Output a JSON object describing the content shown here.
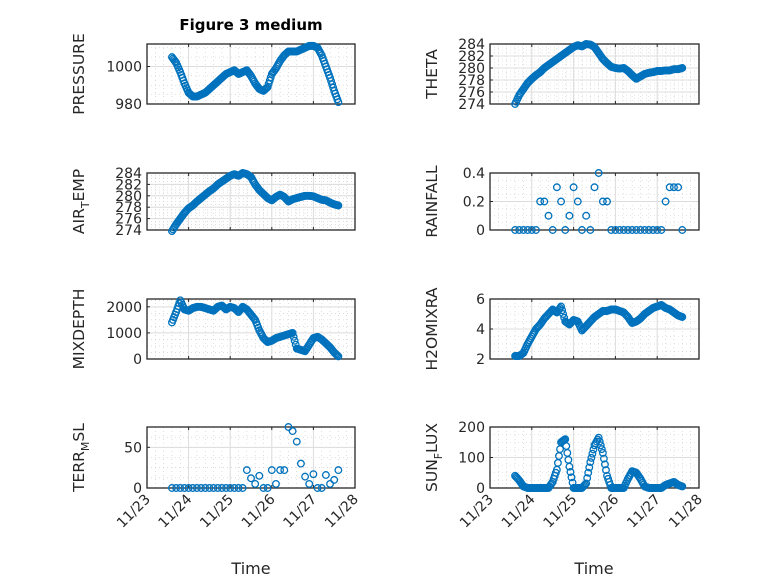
{
  "figure": {
    "title": "Figure 3 medium",
    "marker_color": "#0072BD",
    "xlabel": "Time"
  },
  "chart_data": {
    "type": "scatter",
    "marker": "open-circle",
    "x_unit": "days since 11/23 00:00",
    "x": [
      0.6,
      0.7,
      0.8,
      0.9,
      1.0,
      1.1,
      1.2,
      1.3,
      1.4,
      1.5,
      1.6,
      1.7,
      1.8,
      1.9,
      2.0,
      2.1,
      2.2,
      2.3,
      2.4,
      2.5,
      2.6,
      2.7,
      2.8,
      2.9,
      3.0,
      3.1,
      3.2,
      3.3,
      3.4,
      3.5,
      3.6,
      3.7,
      3.8,
      3.9,
      4.0,
      4.1,
      4.2,
      4.3,
      4.4,
      4.5,
      4.6
    ],
    "xlim": [
      0,
      5
    ],
    "xticks": [
      0,
      1,
      2,
      3,
      4,
      5
    ],
    "xticklabels": [
      "11/23",
      "11/24",
      "11/25",
      "11/26",
      "11/27",
      "11/28"
    ],
    "grid": "on (major + minor)",
    "panels": [
      {
        "ylabel": "PRESSURE",
        "ylim": [
          980,
          1012
        ],
        "yticks": [
          980,
          1000
        ],
        "dense": true,
        "values": [
          1005,
          1002,
          997,
          991,
          986,
          984,
          984,
          985,
          986,
          988,
          990,
          992,
          994,
          996,
          997,
          998,
          996,
          997,
          998,
          995,
          991,
          988,
          987,
          989,
          996,
          999,
          1003,
          1006,
          1008,
          1008,
          1008,
          1009,
          1010,
          1011,
          1011,
          1010,
          1006,
          1000,
          994,
          987,
          981
        ]
      },
      {
        "ylabel": "THETA",
        "ylim": [
          274,
          284
        ],
        "yticks": [
          274,
          276,
          278,
          280,
          282,
          284
        ],
        "dense": true,
        "values": [
          274,
          275.5,
          276.5,
          277.5,
          278.2,
          278.8,
          279.3,
          280,
          280.5,
          281,
          281.5,
          282,
          282.5,
          283,
          283.5,
          283.8,
          283.6,
          284,
          283.9,
          283.5,
          282.5,
          281.5,
          280.8,
          280.2,
          280,
          279.9,
          280,
          279.5,
          278.8,
          278.2,
          278.6,
          279,
          279.2,
          279.3,
          279.5,
          279.5,
          279.6,
          279.6,
          279.8,
          279.8,
          280
        ]
      },
      {
        "ylabel": "AIR_TEMP",
        "ylim": [
          274,
          284
        ],
        "yticks": [
          274,
          276,
          278,
          280,
          282,
          284
        ],
        "dense": true,
        "values": [
          273.8,
          275,
          276,
          277,
          277.8,
          278.3,
          279,
          279.6,
          280.2,
          280.8,
          281.3,
          282,
          282.5,
          283,
          283.5,
          283.8,
          283.5,
          284,
          283.8,
          283.3,
          282,
          281,
          280.3,
          279.6,
          279.2,
          279.8,
          280.2,
          279.8,
          279,
          279.4,
          279.6,
          279.8,
          280,
          280,
          279.9,
          279.6,
          279.3,
          279.2,
          278.8,
          278.5,
          278.3
        ]
      },
      {
        "ylabel": "RAINFALL",
        "ylim": [
          0,
          0.4
        ],
        "yticks": [
          0,
          0.2,
          0.4
        ],
        "dense": false,
        "values": [
          0,
          0,
          0,
          0,
          0,
          0,
          0.2,
          0.2,
          0.1,
          0,
          0.3,
          0.2,
          0,
          0.1,
          0.3,
          0.2,
          0,
          0.1,
          0,
          0.3,
          0.4,
          0.2,
          0.2,
          0,
          0,
          0,
          0,
          0,
          0,
          0,
          0,
          0,
          0,
          0,
          0,
          0,
          0.2,
          0.3,
          0.3,
          0.3,
          0
        ]
      },
      {
        "ylabel": "MIXDEPTH",
        "ylim": [
          0,
          2300
        ],
        "yticks": [
          0,
          1000,
          2000
        ],
        "dense": true,
        "values": [
          1400,
          1800,
          2250,
          1900,
          1850,
          1950,
          2000,
          2000,
          1950,
          1900,
          1850,
          2000,
          2050,
          1900,
          2000,
          1950,
          1800,
          2000,
          1900,
          1700,
          1500,
          1100,
          800,
          650,
          700,
          800,
          850,
          900,
          950,
          1000,
          400,
          350,
          300,
          550,
          800,
          850,
          750,
          600,
          450,
          250,
          100
        ]
      },
      {
        "ylabel": "H2OMIXRA",
        "ylim": [
          2,
          6
        ],
        "yticks": [
          2,
          4,
          6
        ],
        "dense": true,
        "values": [
          2.2,
          2.2,
          2.4,
          3,
          3.5,
          4,
          4.3,
          4.7,
          5,
          5.3,
          5.1,
          5.5,
          4.5,
          4.3,
          4.6,
          4.5,
          3.9,
          4.2,
          4.5,
          4.8,
          5,
          5.2,
          5.2,
          5.3,
          5.3,
          5.2,
          5.1,
          4.8,
          4.4,
          4.5,
          4.7,
          5,
          5.2,
          5.4,
          5.5,
          5.6,
          5.4,
          5.3,
          5.1,
          4.9,
          4.8
        ]
      },
      {
        "ylabel": "TERR_MSL",
        "ylim": [
          0,
          75
        ],
        "yticks": [
          0,
          50
        ],
        "dense": false,
        "values": [
          0,
          0,
          0,
          0,
          0,
          0,
          0,
          0,
          0,
          0,
          0,
          0,
          0,
          0,
          0,
          0,
          0,
          0,
          22,
          12,
          5,
          15,
          0,
          0,
          22,
          5,
          22,
          22,
          75,
          70,
          57,
          30,
          14,
          5,
          17,
          0,
          0,
          16,
          5,
          10,
          22
        ]
      },
      {
        "ylabel": "SUN_FLUX",
        "ylim": [
          0,
          200
        ],
        "yticks": [
          0,
          100,
          200
        ],
        "dense": true,
        "values": [
          40,
          25,
          5,
          0,
          0,
          0,
          0,
          0,
          0,
          20,
          60,
          150,
          160,
          70,
          0,
          0,
          0,
          15,
          85,
          140,
          165,
          115,
          40,
          0,
          0,
          0,
          0,
          30,
          55,
          50,
          30,
          5,
          0,
          0,
          0,
          0,
          10,
          15,
          20,
          10,
          5
        ]
      }
    ]
  }
}
